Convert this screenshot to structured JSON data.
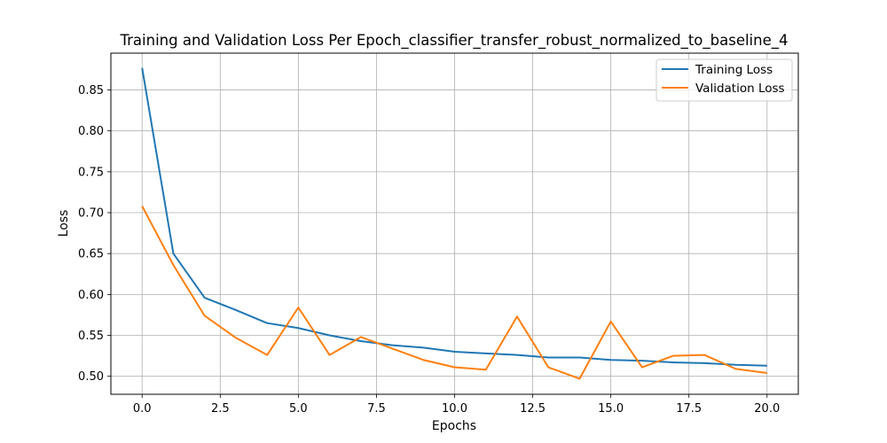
{
  "chart_data": {
    "type": "line",
    "title": "Training and Validation Loss Per Epoch_classifier_transfer_robust_normalized_to_baseline_4",
    "xlabel": "Epochs",
    "ylabel": "Loss",
    "xlim": [
      -1,
      21
    ],
    "ylim": [
      0.478,
      0.895
    ],
    "xticks": [
      0.0,
      2.5,
      5.0,
      7.5,
      10.0,
      12.5,
      15.0,
      17.5,
      20.0
    ],
    "xtick_labels": [
      "0.0",
      "2.5",
      "5.0",
      "7.5",
      "10.0",
      "12.5",
      "15.0",
      "17.5",
      "20.0"
    ],
    "yticks": [
      0.5,
      0.55,
      0.6,
      0.65,
      0.7,
      0.75,
      0.8,
      0.85
    ],
    "ytick_labels": [
      "0.50",
      "0.55",
      "0.60",
      "0.65",
      "0.70",
      "0.75",
      "0.80",
      "0.85"
    ],
    "grid": true,
    "legend_position": "top-right",
    "x": [
      0,
      1,
      2,
      3,
      4,
      5,
      6,
      7,
      8,
      9,
      10,
      11,
      12,
      13,
      14,
      15,
      16,
      17,
      18,
      19,
      20
    ],
    "series": [
      {
        "name": "Training Loss",
        "color": "#1f77b4",
        "values": [
          0.877,
          0.65,
          0.596,
          0.581,
          0.565,
          0.559,
          0.55,
          0.543,
          0.538,
          0.535,
          0.53,
          0.528,
          0.526,
          0.523,
          0.523,
          0.52,
          0.519,
          0.517,
          0.516,
          0.514,
          0.513
        ]
      },
      {
        "name": "Validation Loss",
        "color": "#ff7f0e",
        "values": [
          0.708,
          0.636,
          0.574,
          0.547,
          0.526,
          0.584,
          0.526,
          0.548,
          0.534,
          0.52,
          0.511,
          0.508,
          0.573,
          0.511,
          0.497,
          0.567,
          0.511,
          0.525,
          0.526,
          0.509,
          0.504
        ]
      }
    ]
  }
}
